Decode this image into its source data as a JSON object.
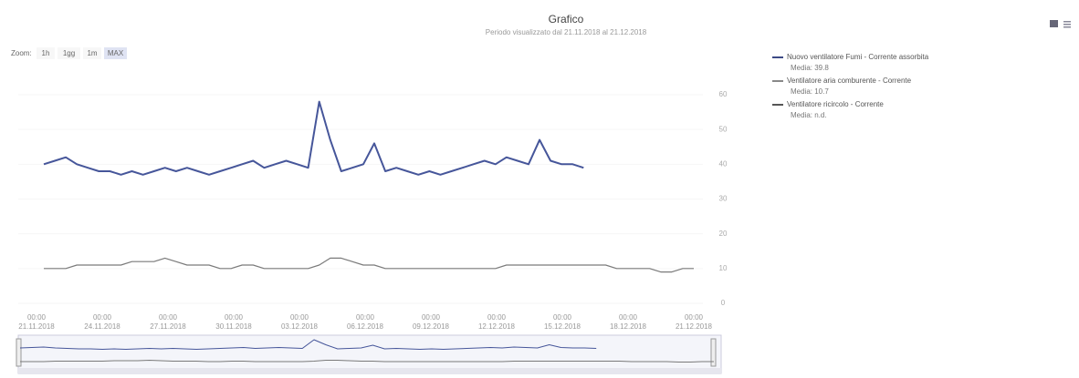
{
  "header": {
    "title": "Grafico",
    "subtitle": "Periodo visualizzato dal 21.11.2018 al 21.12.2018"
  },
  "zoom": {
    "label": "Zoom:",
    "buttons": [
      "1h",
      "1gg",
      "1m",
      "MAX"
    ]
  },
  "legend": {
    "items": [
      {
        "name": "Nuovo ventilatore Fumi - Corrente assorbita",
        "sub": "Media: 39.8",
        "color": "#3d4a86"
      },
      {
        "name": "Ventilatore aria comburente - Corrente",
        "sub": "Media: 10.7",
        "color": "#888888"
      },
      {
        "name": "Ventilatore ricircolo - Corrente",
        "sub": "Media: n.d.",
        "color": "#555555"
      }
    ]
  },
  "chart": {
    "ylim": [
      0,
      60
    ],
    "yticks": [
      0,
      10,
      20,
      30,
      40,
      50,
      60
    ],
    "x_labels": [
      {
        "time": "00:00",
        "date": "21.11.2018"
      },
      {
        "time": "00:00",
        "date": "24.11.2018"
      },
      {
        "time": "00:00",
        "date": "27.11.2018"
      },
      {
        "time": "00:00",
        "date": "30.11.2018"
      },
      {
        "time": "00:00",
        "date": "03.12.2018"
      },
      {
        "time": "00:00",
        "date": "06.12.2018"
      },
      {
        "time": "00:00",
        "date": "09.12.2018"
      },
      {
        "time": "00:00",
        "date": "12.12.2018"
      },
      {
        "time": "00:00",
        "date": "15.12.2018"
      },
      {
        "time": "00:00",
        "date": "18.12.2018"
      },
      {
        "time": "00:00",
        "date": "21.12.2018"
      }
    ],
    "series": [
      {
        "color": "#46569a",
        "values": [
          40,
          41,
          42,
          40,
          39,
          38,
          38,
          37,
          38,
          37,
          38,
          39,
          38,
          39,
          38,
          37,
          38,
          39,
          40,
          41,
          39,
          40,
          41,
          40,
          39,
          58,
          47,
          38,
          39,
          40,
          46,
          38,
          39,
          38,
          37,
          38,
          37,
          38,
          39,
          40,
          41,
          40,
          42,
          41,
          40,
          47,
          41,
          40,
          40,
          39,
          null,
          null,
          null,
          null,
          null,
          null,
          null,
          null,
          null,
          null
        ]
      },
      {
        "color": "#7a7a7a",
        "values": [
          10,
          10,
          10,
          11,
          11,
          11,
          11,
          11,
          12,
          12,
          12,
          13,
          12,
          11,
          11,
          11,
          10,
          10,
          11,
          11,
          10,
          10,
          10,
          10,
          10,
          11,
          13,
          13,
          12,
          11,
          11,
          10,
          10,
          10,
          10,
          10,
          10,
          10,
          10,
          10,
          10,
          10,
          11,
          11,
          11,
          11,
          11,
          11,
          11,
          11,
          11,
          11,
          10,
          10,
          10,
          10,
          9,
          9,
          10,
          10
        ]
      }
    ]
  }
}
